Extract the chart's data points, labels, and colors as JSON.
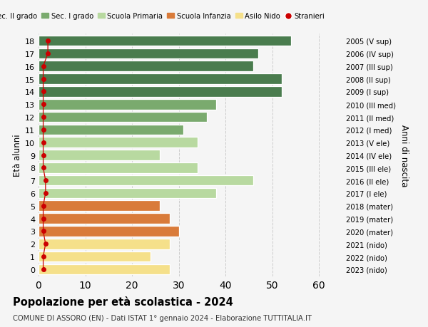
{
  "ages": [
    18,
    17,
    16,
    15,
    14,
    13,
    12,
    11,
    10,
    9,
    8,
    7,
    6,
    5,
    4,
    3,
    2,
    1,
    0
  ],
  "values": [
    54,
    47,
    46,
    52,
    52,
    38,
    36,
    31,
    34,
    26,
    34,
    46,
    38,
    26,
    28,
    30,
    28,
    24,
    28
  ],
  "right_labels": [
    "2005 (V sup)",
    "2006 (IV sup)",
    "2007 (III sup)",
    "2008 (II sup)",
    "2009 (I sup)",
    "2010 (III med)",
    "2011 (II med)",
    "2012 (I med)",
    "2013 (V ele)",
    "2014 (IV ele)",
    "2015 (III ele)",
    "2016 (II ele)",
    "2017 (I ele)",
    "2018 (mater)",
    "2019 (mater)",
    "2020 (mater)",
    "2021 (nido)",
    "2022 (nido)",
    "2023 (nido)"
  ],
  "bar_colors": [
    "#4a7c4e",
    "#4a7c4e",
    "#4a7c4e",
    "#4a7c4e",
    "#4a7c4e",
    "#7aaa6e",
    "#7aaa6e",
    "#7aaa6e",
    "#b8d9a0",
    "#b8d9a0",
    "#b8d9a0",
    "#b8d9a0",
    "#b8d9a0",
    "#d97b3a",
    "#d97b3a",
    "#d97b3a",
    "#f5e08a",
    "#f5e08a",
    "#f5e08a"
  ],
  "legend_labels": [
    "Sec. II grado",
    "Sec. I grado",
    "Scuola Primaria",
    "Scuola Infanzia",
    "Asilo Nido",
    "Stranieri"
  ],
  "legend_colors": [
    "#4a7c4e",
    "#7aaa6e",
    "#b8d9a0",
    "#d97b3a",
    "#f5e08a",
    "#cc0000"
  ],
  "stranieri_x": [
    2,
    2,
    1,
    1,
    1,
    1,
    1,
    1,
    1,
    1,
    1,
    1.5,
    1.5,
    1,
    1,
    1,
    1.5,
    1,
    1
  ],
  "title": "Popolazione per età scolastica - 2024",
  "subtitle": "COMUNE DI ASSORO (EN) - Dati ISTAT 1° gennaio 2024 - Elaborazione TUTTITALIA.IT",
  "ylabel_left": "Età alunni",
  "ylabel_right": "Anni di nascita",
  "xlim": [
    0,
    65
  ],
  "xticks": [
    0,
    10,
    20,
    30,
    40,
    50,
    60
  ],
  "ylim": [
    -0.55,
    18.55
  ],
  "bg_color": "#f5f5f5",
  "stranieri_color": "#cc0000",
  "grid_color": "#cccccc"
}
